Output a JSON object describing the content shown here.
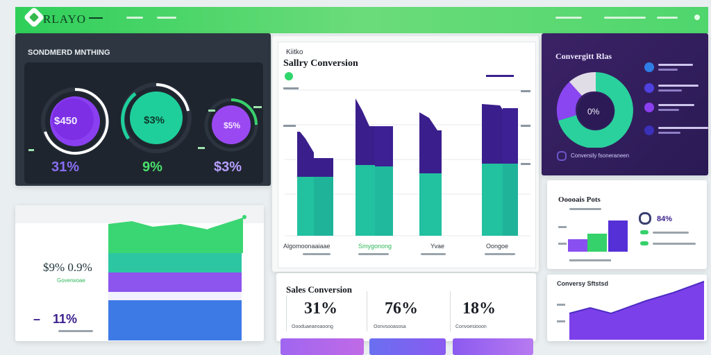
{
  "brand": {
    "name": "RLAYO"
  },
  "colors": {
    "green": "#2fcf5a",
    "teal": "#27c29b",
    "purple": "#6f3ad0",
    "indigo": "#3d1c8e",
    "blue": "#3d7fe0"
  },
  "left_panel": {
    "title": "SONDMERD MNTHING",
    "gauges": [
      {
        "center": "$450",
        "value": "31%"
      },
      {
        "center": "$3%",
        "value": "9%"
      },
      {
        "center": "$5%",
        "value": "$3%"
      }
    ]
  },
  "center_panel": {
    "kicker": "Kiitko",
    "title": "Sallry Conversion",
    "categories": [
      "Algomoonaaiaae",
      "Smygonong",
      "Yvae",
      "Oongoe"
    ]
  },
  "right_top_panel": {
    "title": "Convergitt Rlas",
    "center_value": "0%",
    "footer": "Conversily fsoneraneen"
  },
  "right_mid_panel": {
    "title": "Ooooais Pots",
    "badge_value": "84%"
  },
  "right_bottom_panel": {
    "title": "Conversy Sftstsd"
  },
  "bottom_left_panel": {
    "value_a": "$9% 0.9%",
    "value_a_sub": "Goverwoae",
    "value_b": "11%",
    "value_b_prefix": "–"
  },
  "bottom_center_panel": {
    "title": "Sales Conversion",
    "kpis": [
      {
        "value": "31%",
        "label": "Oooduaeaeoaoong"
      },
      {
        "value": "76%",
        "label": "Oonvsooasosa"
      },
      {
        "value": "18%",
        "label": "Convoesiooon"
      }
    ]
  }
}
